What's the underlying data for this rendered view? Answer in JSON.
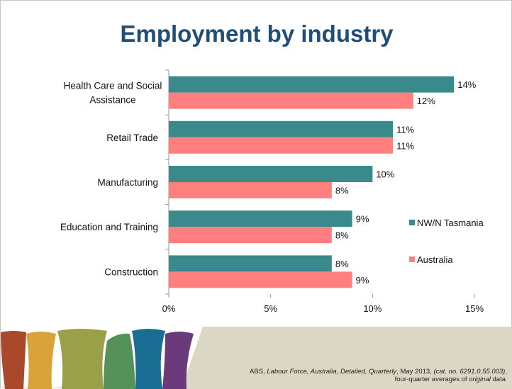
{
  "slide": {
    "title": "Employment by industry",
    "source_line1_parts": [
      "ABS, ",
      "Labour Force, Australia, Detailed, Quarterly",
      ", May 2013, ",
      "(cat. no. 6291.0.55.003)",
      ","
    ],
    "source_line2_parts": [
      "four-quarter averages of ",
      "original",
      " data"
    ]
  },
  "colors": {
    "nw_n_tasmania": "#3a8a8c",
    "australia": "#ff7f7f",
    "footer_bg": "#dcd6c4",
    "title": "#1f4e79"
  },
  "chart_data": {
    "type": "bar",
    "orientation": "horizontal",
    "categories": [
      "Health Care and Social Assistance",
      "Retail Trade",
      "Manufacturing",
      "Education and Training",
      "Construction"
    ],
    "category_label_lines": [
      [
        "Health Care and Social",
        "Assistance"
      ],
      [
        "Retail Trade"
      ],
      [
        "Manufacturing"
      ],
      [
        "Education and Training"
      ],
      [
        "Construction"
      ]
    ],
    "series": [
      {
        "name": "NW/N Tasmania",
        "values": [
          14,
          11,
          10,
          9,
          8
        ],
        "labels": [
          "14%",
          "11%",
          "10%",
          "9%",
          "8%"
        ]
      },
      {
        "name": "Australia",
        "values": [
          12,
          11,
          8,
          8,
          9
        ],
        "labels": [
          "12%",
          "11%",
          "8%",
          "8%",
          "9%"
        ]
      }
    ],
    "xlim": [
      0,
      15
    ],
    "x_ticks": [
      0,
      5,
      10,
      15
    ],
    "x_tick_labels": [
      "0%",
      "5%",
      "10%",
      "15%"
    ],
    "grid": false,
    "legend_position": "right"
  }
}
